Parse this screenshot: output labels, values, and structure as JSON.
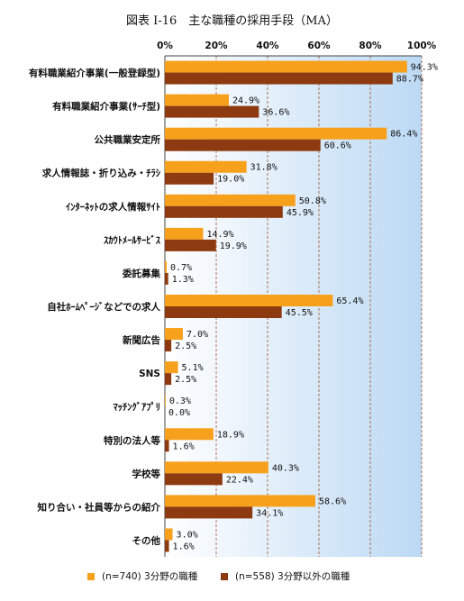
{
  "chart_data": {
    "type": "bar",
    "orientation": "horizontal",
    "title": "図表 Ⅰ-16　主な職種の採用手段（MA）",
    "xlim": [
      0,
      100
    ],
    "x_ticks": [
      "0%",
      "20%",
      "40%",
      "60%",
      "80%",
      "100%"
    ],
    "grid": true,
    "legend_position": "bottom",
    "categories": [
      "有料職業紹介事業(一般登録型)",
      "有料職業紹介事業(ｻｰﾁ型)",
      "公共職業安定所",
      "求人情報誌・折り込み・ﾁﾗｼ",
      "ｲﾝﾀｰﾈｯﾄの求人情報ｻｲﾄ",
      "ｽｶｳﾄﾒｰﾙｻｰﾋﾞｽ",
      "委託募集",
      "自社ﾎｰﾑﾍﾟｰｼﾞなどでの求人",
      "新聞広告",
      "SNS",
      "ﾏｯﾁﾝｸﾞｱﾌﾟﾘ",
      "特別の法人等",
      "学校等",
      "知り合い・社員等からの紹介",
      "その他"
    ],
    "series": [
      {
        "name": "(n=740) 3分野の職種",
        "color": "#F7A01C",
        "values": [
          94.3,
          24.9,
          86.4,
          31.8,
          50.8,
          14.9,
          0.7,
          65.4,
          7.0,
          5.1,
          0.3,
          18.9,
          40.3,
          58.6,
          3.0
        ],
        "labels": [
          "94.3%",
          "24.9%",
          "86.4%",
          "31.8%",
          "50.8%",
          "14.9%",
          "0.7%",
          "65.4%",
          "7.0%",
          "5.1%",
          "0.3%",
          "18.9%",
          "40.3%",
          "58.6%",
          "3.0%"
        ]
      },
      {
        "name": "(n=558) 3分野以外の職種",
        "color": "#8E3A10",
        "values": [
          88.7,
          36.6,
          60.6,
          19.0,
          45.9,
          19.9,
          1.3,
          45.5,
          2.5,
          2.5,
          0.0,
          1.6,
          22.4,
          34.1,
          1.6
        ],
        "labels": [
          "88.7%",
          "36.6%",
          "60.6%",
          "19.0%",
          "45.9%",
          "19.9%",
          "1.3%",
          "45.5%",
          "2.5%",
          "2.5%",
          "0.0%",
          "1.6%",
          "22.4%",
          "34.1%",
          "1.6%"
        ]
      }
    ]
  }
}
